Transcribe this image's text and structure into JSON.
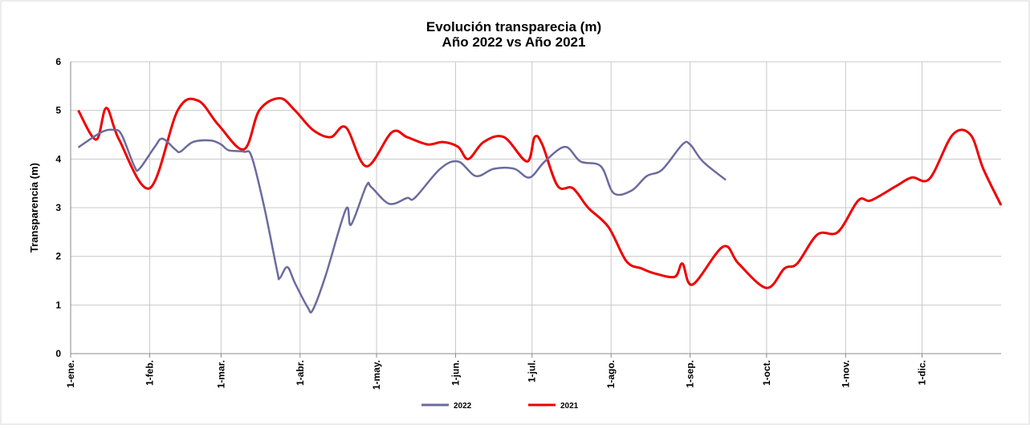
{
  "chart_data": {
    "type": "line",
    "title": "Evolución transparecia (m)",
    "subtitle": "Año 2022 vs Año 2021",
    "y_label": "Transparencia (m)",
    "xlim": [
      0,
      365
    ],
    "xticks": [
      {
        "value": 0,
        "label": "1-ene."
      },
      {
        "value": 31,
        "label": "1-feb."
      },
      {
        "value": 59,
        "label": "1-mar."
      },
      {
        "value": 90,
        "label": "1-abr."
      },
      {
        "value": 120,
        "label": "1-may."
      },
      {
        "value": 151,
        "label": "1-jun."
      },
      {
        "value": 181,
        "label": "1-jul."
      },
      {
        "value": 212,
        "label": "1-ago."
      },
      {
        "value": 243,
        "label": "1-sep."
      },
      {
        "value": 273,
        "label": "1-oct."
      },
      {
        "value": 304,
        "label": "1-nov."
      },
      {
        "value": 334,
        "label": "1-dic."
      }
    ],
    "ylim": [
      0,
      6
    ],
    "yticks": [
      0,
      1,
      2,
      3,
      4,
      5,
      6
    ],
    "grid": true,
    "legend": "bottom",
    "series": [
      {
        "name": "2022",
        "color": "#6b6b9e",
        "x": [
          3,
          12,
          17,
          20,
          25,
          27,
          33,
          36,
          41,
          43,
          48,
          55,
          59,
          62,
          68,
          71,
          76,
          81,
          82,
          85,
          88,
          93,
          95,
          100,
          108,
          110,
          116,
          118,
          125,
          132,
          135,
          145,
          152,
          159,
          166,
          174,
          180,
          186,
          194,
          200,
          208,
          213,
          220,
          226,
          232,
          240,
          243,
          248,
          257
        ],
        "values": [
          4.24,
          4.55,
          4.6,
          4.5,
          3.85,
          3.8,
          4.25,
          4.42,
          4.2,
          4.15,
          4.35,
          4.38,
          4.3,
          4.18,
          4.15,
          4.05,
          3.0,
          1.7,
          1.55,
          1.78,
          1.45,
          0.95,
          0.9,
          1.6,
          2.97,
          2.65,
          3.45,
          3.42,
          3.08,
          3.2,
          3.2,
          3.8,
          3.95,
          3.65,
          3.8,
          3.8,
          3.62,
          3.95,
          4.25,
          3.95,
          3.85,
          3.3,
          3.35,
          3.65,
          3.78,
          4.3,
          4.3,
          3.95,
          3.57
        ]
      },
      {
        "name": "2021",
        "color": "#ee0000",
        "x": [
          3,
          10,
          14,
          19,
          31,
          42,
          50,
          58,
          68,
          74,
          82,
          88,
          95,
          102,
          108,
          116,
          126,
          132,
          140,
          146,
          152,
          156,
          162,
          170,
          179,
          182,
          185,
          191,
          197,
          203,
          211,
          218,
          224,
          229,
          237,
          240,
          244,
          256,
          262,
          273,
          280,
          285,
          293,
          301,
          309,
          314,
          324,
          330,
          337,
          346,
          353,
          358,
          365
        ],
        "values": [
          5.0,
          4.4,
          5.05,
          4.4,
          3.4,
          5.0,
          5.2,
          4.7,
          4.2,
          5.0,
          5.25,
          5.0,
          4.6,
          4.45,
          4.65,
          3.85,
          4.55,
          4.45,
          4.3,
          4.35,
          4.25,
          4.0,
          4.35,
          4.45,
          3.95,
          4.45,
          4.3,
          3.45,
          3.4,
          3.0,
          2.6,
          1.9,
          1.75,
          1.65,
          1.58,
          1.85,
          1.42,
          2.2,
          1.85,
          1.35,
          1.75,
          1.85,
          2.45,
          2.5,
          3.15,
          3.15,
          3.45,
          3.62,
          3.6,
          4.5,
          4.5,
          3.8,
          3.05
        ]
      }
    ]
  }
}
